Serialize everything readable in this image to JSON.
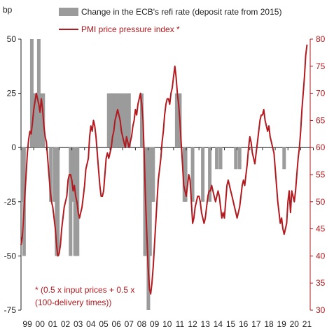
{
  "chart_data": {
    "type": "bar+line",
    "left_axis": {
      "label": "bp",
      "ticks": [
        50,
        25,
        0,
        -25,
        -50,
        -75
      ],
      "ylim": [
        -75,
        50
      ]
    },
    "right_axis": {
      "ticks": [
        80,
        75,
        70,
        65,
        60,
        55,
        50,
        45,
        40,
        35,
        30
      ],
      "ylim": [
        30,
        80
      ]
    },
    "x_tick_labels": [
      "99",
      "00",
      "01",
      "02",
      "03",
      "04",
      "05",
      "06",
      "07",
      "08",
      "09",
      "10",
      "11",
      "12",
      "13",
      "14",
      "15",
      "16",
      "17",
      "18",
      "19",
      "20",
      "21"
    ],
    "x_range": [
      1999.0,
      2021.75
    ],
    "legend": [
      {
        "label": "Change in the ECB's refi rate (deposit rate from 2015)",
        "type": "bar",
        "color": "#9b9b9b"
      },
      {
        "label": "PMI price pressure index *",
        "type": "line",
        "color": "#b21a1f"
      }
    ],
    "annotation": [
      "* (0.5 x input prices + 0.5 x",
      "(100-delivery times))"
    ],
    "series": [
      {
        "name": "Change in the ECB's refi rate (deposit rate from 2015)",
        "axis": "left",
        "type": "bar",
        "points": [
          [
            1999.1,
            -25
          ],
          [
            1999.24,
            -50
          ],
          [
            1999.85,
            50
          ],
          [
            2000.0,
            25
          ],
          [
            2000.08,
            25
          ],
          [
            2000.25,
            25
          ],
          [
            2000.4,
            50
          ],
          [
            2000.5,
            25
          ],
          [
            2000.65,
            12.5
          ],
          [
            2000.75,
            25
          ],
          [
            2001.35,
            -25
          ],
          [
            2001.65,
            -25
          ],
          [
            2001.72,
            -25
          ],
          [
            2001.8,
            -50
          ],
          [
            2001.9,
            -50
          ],
          [
            2002.9,
            -50
          ],
          [
            2003.15,
            -25
          ],
          [
            2003.25,
            -50
          ],
          [
            2003.45,
            -50
          ],
          [
            2005.9,
            25
          ],
          [
            2006.1,
            25
          ],
          [
            2006.2,
            25
          ],
          [
            2006.4,
            25
          ],
          [
            2006.5,
            25
          ],
          [
            2006.6,
            25
          ],
          [
            2006.8,
            25
          ],
          [
            2006.95,
            25
          ],
          [
            2007.15,
            25
          ],
          [
            2007.4,
            25
          ],
          [
            2007.5,
            25
          ],
          [
            2008.5,
            25
          ],
          [
            2008.75,
            -50
          ],
          [
            2008.85,
            -50
          ],
          [
            2008.93,
            -50
          ],
          [
            2009.02,
            -75
          ],
          [
            2009.15,
            -50
          ],
          [
            2009.28,
            -25
          ],
          [
            2009.35,
            -25
          ],
          [
            2009.4,
            -25
          ],
          [
            2011.25,
            25
          ],
          [
            2011.5,
            25
          ],
          [
            2011.85,
            -25
          ],
          [
            2011.95,
            -25
          ],
          [
            2012.5,
            -25
          ],
          [
            2013.3,
            -25
          ],
          [
            2013.85,
            -25
          ],
          [
            2014.4,
            -10
          ],
          [
            2014.7,
            -10
          ],
          [
            2015.9,
            -10
          ],
          [
            2016.2,
            -10
          ],
          [
            2019.7,
            -10
          ]
        ]
      },
      {
        "name": "PMI price pressure index *",
        "axis": "right",
        "type": "line",
        "points": [
          [
            1999.0,
            42
          ],
          [
            1999.1,
            43.5
          ],
          [
            1999.2,
            47
          ],
          [
            1999.3,
            51
          ],
          [
            1999.4,
            55
          ],
          [
            1999.5,
            59
          ],
          [
            1999.6,
            61.5
          ],
          [
            1999.7,
            63
          ],
          [
            1999.8,
            62.5
          ],
          [
            1999.9,
            64.5
          ],
          [
            2000.0,
            67
          ],
          [
            2000.1,
            68.5
          ],
          [
            2000.2,
            70
          ],
          [
            2000.3,
            69
          ],
          [
            2000.4,
            68
          ],
          [
            2000.5,
            66.5
          ],
          [
            2000.6,
            69
          ],
          [
            2000.7,
            67
          ],
          [
            2000.8,
            64
          ],
          [
            2000.9,
            62
          ],
          [
            2001.0,
            61
          ],
          [
            2001.1,
            58
          ],
          [
            2001.2,
            55
          ],
          [
            2001.3,
            52
          ],
          [
            2001.4,
            50
          ],
          [
            2001.5,
            49
          ],
          [
            2001.6,
            47
          ],
          [
            2001.7,
            45
          ],
          [
            2001.8,
            42
          ],
          [
            2001.9,
            40
          ],
          [
            2002.0,
            40.5
          ],
          [
            2002.1,
            42
          ],
          [
            2002.2,
            45
          ],
          [
            2002.3,
            47
          ],
          [
            2002.4,
            49
          ],
          [
            2002.5,
            50
          ],
          [
            2002.6,
            51
          ],
          [
            2002.7,
            54
          ],
          [
            2002.8,
            55
          ],
          [
            2002.9,
            55
          ],
          [
            2003.0,
            54
          ],
          [
            2003.1,
            52
          ],
          [
            2003.2,
            53
          ],
          [
            2003.3,
            51
          ],
          [
            2003.4,
            50
          ],
          [
            2003.5,
            48
          ],
          [
            2003.6,
            47
          ],
          [
            2003.7,
            48
          ],
          [
            2003.8,
            49
          ],
          [
            2003.9,
            51
          ],
          [
            2004.0,
            53
          ],
          [
            2004.1,
            56
          ],
          [
            2004.2,
            57
          ],
          [
            2004.3,
            58
          ],
          [
            2004.4,
            62
          ],
          [
            2004.5,
            64
          ],
          [
            2004.6,
            63
          ],
          [
            2004.7,
            65
          ],
          [
            2004.8,
            64
          ],
          [
            2004.9,
            62
          ],
          [
            2005.0,
            59
          ],
          [
            2005.1,
            56
          ],
          [
            2005.2,
            53
          ],
          [
            2005.3,
            51
          ],
          [
            2005.4,
            51
          ],
          [
            2005.5,
            52
          ],
          [
            2005.6,
            55
          ],
          [
            2005.7,
            58
          ],
          [
            2005.8,
            59
          ],
          [
            2005.9,
            58
          ],
          [
            2006.0,
            59
          ],
          [
            2006.1,
            60
          ],
          [
            2006.2,
            62
          ],
          [
            2006.3,
            63
          ],
          [
            2006.4,
            65
          ],
          [
            2006.5,
            66
          ],
          [
            2006.6,
            67
          ],
          [
            2006.7,
            66
          ],
          [
            2006.8,
            65
          ],
          [
            2006.9,
            63
          ],
          [
            2007.0,
            62
          ],
          [
            2007.1,
            61
          ],
          [
            2007.2,
            60
          ],
          [
            2007.3,
            62
          ],
          [
            2007.4,
            61
          ],
          [
            2007.5,
            60
          ],
          [
            2007.6,
            61
          ],
          [
            2007.7,
            62
          ],
          [
            2007.8,
            64
          ],
          [
            2007.9,
            65
          ],
          [
            2008.0,
            67
          ],
          [
            2008.1,
            66
          ],
          [
            2008.2,
            68
          ],
          [
            2008.3,
            69
          ],
          [
            2008.4,
            70
          ],
          [
            2008.5,
            68
          ],
          [
            2008.6,
            65
          ],
          [
            2008.7,
            58
          ],
          [
            2008.8,
            50
          ],
          [
            2008.9,
            44
          ],
          [
            2009.0,
            38
          ],
          [
            2009.1,
            34
          ],
          [
            2009.2,
            33
          ],
          [
            2009.3,
            35
          ],
          [
            2009.4,
            38
          ],
          [
            2009.5,
            42
          ],
          [
            2009.6,
            46
          ],
          [
            2009.7,
            50
          ],
          [
            2009.8,
            54
          ],
          [
            2009.9,
            56
          ],
          [
            2010.0,
            58
          ],
          [
            2010.1,
            61
          ],
          [
            2010.2,
            63
          ],
          [
            2010.3,
            66
          ],
          [
            2010.4,
            68
          ],
          [
            2010.5,
            69
          ],
          [
            2010.6,
            69
          ],
          [
            2010.7,
            68
          ],
          [
            2010.8,
            70
          ],
          [
            2010.9,
            71
          ],
          [
            2011.0,
            73
          ],
          [
            2011.1,
            75
          ],
          [
            2011.2,
            73
          ],
          [
            2011.3,
            70
          ],
          [
            2011.4,
            68
          ],
          [
            2011.5,
            65
          ],
          [
            2011.6,
            61
          ],
          [
            2011.7,
            57
          ],
          [
            2011.8,
            53
          ],
          [
            2011.9,
            52
          ],
          [
            2012.0,
            51
          ],
          [
            2012.1,
            53
          ],
          [
            2012.2,
            55
          ],
          [
            2012.3,
            54
          ],
          [
            2012.4,
            50
          ],
          [
            2012.5,
            46
          ],
          [
            2012.6,
            47
          ],
          [
            2012.7,
            49
          ],
          [
            2012.8,
            50
          ],
          [
            2012.9,
            51
          ],
          [
            2013.0,
            51
          ],
          [
            2013.1,
            50
          ],
          [
            2013.2,
            48
          ],
          [
            2013.3,
            47
          ],
          [
            2013.4,
            46
          ],
          [
            2013.5,
            47
          ],
          [
            2013.6,
            49
          ],
          [
            2013.7,
            51
          ],
          [
            2013.8,
            52
          ],
          [
            2013.9,
            52
          ],
          [
            2014.0,
            53
          ],
          [
            2014.1,
            52
          ],
          [
            2014.2,
            51
          ],
          [
            2014.3,
            50
          ],
          [
            2014.4,
            51
          ],
          [
            2014.5,
            52
          ],
          [
            2014.6,
            51
          ],
          [
            2014.7,
            49
          ],
          [
            2014.8,
            47
          ],
          [
            2014.9,
            48
          ],
          [
            2015.0,
            47
          ],
          [
            2015.1,
            50
          ],
          [
            2015.2,
            53
          ],
          [
            2015.3,
            54
          ],
          [
            2015.4,
            53
          ],
          [
            2015.5,
            52
          ],
          [
            2015.6,
            51
          ],
          [
            2015.7,
            50
          ],
          [
            2015.8,
            49
          ],
          [
            2015.9,
            48
          ],
          [
            2016.0,
            47
          ],
          [
            2016.1,
            48
          ],
          [
            2016.2,
            49
          ],
          [
            2016.3,
            51
          ],
          [
            2016.4,
            53
          ],
          [
            2016.5,
            54
          ],
          [
            2016.6,
            53
          ],
          [
            2016.7,
            55
          ],
          [
            2016.8,
            57
          ],
          [
            2016.9,
            60
          ],
          [
            2017.0,
            62
          ],
          [
            2017.1,
            61
          ],
          [
            2017.2,
            59
          ],
          [
            2017.3,
            58
          ],
          [
            2017.4,
            57
          ],
          [
            2017.5,
            59
          ],
          [
            2017.6,
            61
          ],
          [
            2017.7,
            63
          ],
          [
            2017.8,
            65
          ],
          [
            2017.9,
            66
          ],
          [
            2018.0,
            66
          ],
          [
            2018.1,
            67
          ],
          [
            2018.2,
            65
          ],
          [
            2018.3,
            64
          ],
          [
            2018.4,
            63
          ],
          [
            2018.5,
            64
          ],
          [
            2018.6,
            62
          ],
          [
            2018.7,
            61
          ],
          [
            2018.8,
            60
          ],
          [
            2018.9,
            59
          ],
          [
            2019.0,
            56
          ],
          [
            2019.1,
            53
          ],
          [
            2019.2,
            50
          ],
          [
            2019.3,
            48
          ],
          [
            2019.4,
            46
          ],
          [
            2019.5,
            47
          ],
          [
            2019.6,
            45
          ],
          [
            2019.7,
            44
          ],
          [
            2019.8,
            45
          ],
          [
            2019.9,
            46
          ],
          [
            2020.0,
            50
          ],
          [
            2020.1,
            52
          ],
          [
            2020.2,
            48
          ],
          [
            2020.3,
            52
          ],
          [
            2020.4,
            51
          ],
          [
            2020.5,
            50
          ],
          [
            2020.6,
            52
          ],
          [
            2020.7,
            55
          ],
          [
            2020.8,
            58
          ],
          [
            2020.9,
            60
          ],
          [
            2021.0,
            63
          ],
          [
            2021.1,
            67
          ],
          [
            2021.2,
            70
          ],
          [
            2021.3,
            73
          ],
          [
            2021.4,
            77
          ],
          [
            2021.5,
            79
          ]
        ]
      }
    ]
  }
}
